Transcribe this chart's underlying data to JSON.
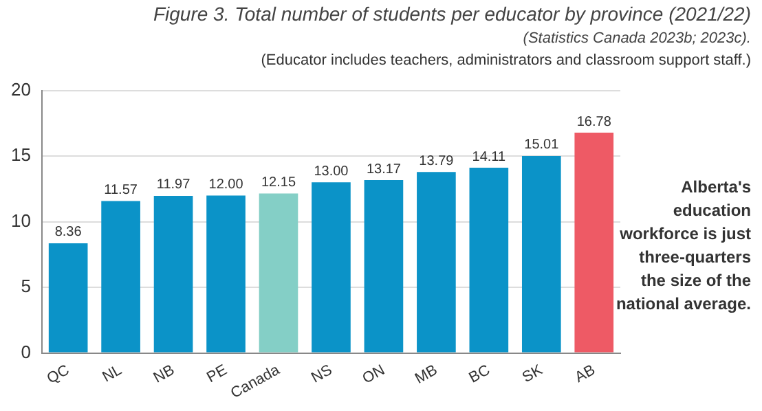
{
  "chart_data": {
    "type": "bar",
    "title": "Figure 3. Total number of students per educator by province (2021/22)",
    "subtitle": "(Statistics Canada 2023b; 2023c).",
    "annotations": [
      "(Educator includes teachers, administrators and classroom support staff.)",
      "Alberta's education workforce is just three-quarters the size of the national average."
    ],
    "categories": [
      "QC",
      "NL",
      "NB",
      "PE",
      "Canada",
      "NS",
      "ON",
      "MB",
      "BC",
      "SK",
      "AB"
    ],
    "values": [
      8.36,
      11.57,
      11.97,
      12.0,
      12.15,
      13.0,
      13.17,
      13.79,
      14.11,
      15.01,
      16.78
    ],
    "value_labels": [
      "8.36",
      "11.57",
      "11.97",
      "12.00",
      "12.15",
      "13.00",
      "13.17",
      "13.79",
      "14.11",
      "15.01",
      "16.78"
    ],
    "colors": [
      "#0b93c8",
      "#0b93c8",
      "#0b93c8",
      "#0b93c8",
      "#84cfc6",
      "#0b93c8",
      "#0b93c8",
      "#0b93c8",
      "#0b93c8",
      "#0b93c8",
      "#ee5a65"
    ],
    "ylim": [
      0,
      20
    ],
    "yticks": [
      0,
      5,
      10,
      15,
      20
    ],
    "grid": "y",
    "legend": false
  }
}
